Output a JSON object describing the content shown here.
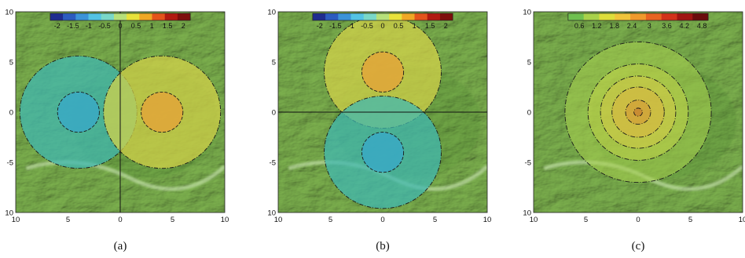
{
  "figure": {
    "panels": [
      {
        "id": "a",
        "caption": "(a)",
        "colorbar": {
          "kind": "diverging",
          "range": [
            -2,
            2
          ],
          "tick_labels": [
            "-2",
            "-1.5",
            "-1",
            "-0.5",
            "0",
            "0.5",
            "1",
            "1.5",
            "2"
          ],
          "colors": [
            "#1f2d8f",
            "#2c5cbf",
            "#3c93d8",
            "#53c3e4",
            "#79d8c8",
            "#b6e07a",
            "#e8e23a",
            "#f0a824",
            "#e4541b",
            "#b11a10",
            "#7d0e0c"
          ]
        },
        "y_tick_labels": [
          "10",
          "5",
          "0",
          "-5",
          "10"
        ],
        "x_tick_labels": [
          "10",
          "5",
          "0",
          "5",
          "10"
        ],
        "divider": "vertical",
        "regions": [
          {
            "name": "negative-region",
            "center": [
              -4,
              0
            ],
            "outer_radius": 5.6,
            "inner_radius": 2.0,
            "outer_color": "#3fb9b4",
            "inner_color": "#3aa9c4"
          },
          {
            "name": "positive-region",
            "center": [
              4,
              0
            ],
            "outer_radius": 5.6,
            "inner_radius": 2.0,
            "outer_color": "#d6d34a",
            "inner_color": "#e2a63a"
          }
        ]
      },
      {
        "id": "b",
        "caption": "(b)",
        "colorbar": {
          "kind": "diverging",
          "range": [
            -2,
            2
          ],
          "tick_labels": [
            "-2",
            "-1.5",
            "-1",
            "-0.5",
            "0",
            "0.5",
            "1",
            "1.5",
            "2"
          ],
          "colors": [
            "#1f2d8f",
            "#2c5cbf",
            "#3c93d8",
            "#53c3e4",
            "#79d8c8",
            "#b6e07a",
            "#e8e23a",
            "#f0a824",
            "#e4541b",
            "#b11a10",
            "#7d0e0c"
          ]
        },
        "y_tick_labels": [
          "10",
          "5",
          "0",
          "-5",
          "10"
        ],
        "x_tick_labels": [
          "10",
          "5",
          "0",
          "5",
          "10"
        ],
        "divider": "horizontal",
        "regions": [
          {
            "name": "positive-region",
            "center": [
              0,
              4
            ],
            "outer_radius": 5.6,
            "inner_radius": 2.0,
            "outer_color": "#d6d34a",
            "inner_color": "#e2a63a"
          },
          {
            "name": "negative-region",
            "center": [
              0,
              -4
            ],
            "outer_radius": 5.6,
            "inner_radius": 2.0,
            "outer_color": "#3fb9b4",
            "inner_color": "#3aa9c4"
          }
        ]
      },
      {
        "id": "c",
        "caption": "(c)",
        "colorbar": {
          "kind": "sequential",
          "range": [
            0,
            4.8
          ],
          "tick_labels": [
            "0.6",
            "1.2",
            "1.8",
            "2.4",
            "3",
            "3.6",
            "4.2",
            "4.8"
          ],
          "colors": [
            "#6fc04f",
            "#a8d24a",
            "#dede3a",
            "#f0c43a",
            "#f09a2c",
            "#e86422",
            "#d2321a",
            "#a01512",
            "#6a0c0c"
          ]
        },
        "y_tick_labels": [
          "10",
          "5",
          "0",
          "-5",
          "10"
        ],
        "x_tick_labels": [
          "10",
          "5",
          "0",
          "5",
          "10"
        ],
        "divider": "none",
        "contour_radii": [
          7.0,
          4.8,
          3.6,
          2.5,
          1.2,
          0.4
        ],
        "contour_colors": [
          "#a7d04e",
          "#c9d649",
          "#d9c948",
          "#ddb13f",
          "#d58f33",
          "#c16a2a"
        ]
      }
    ],
    "terrain_colors": {
      "base": "#7db24e",
      "dark": "#3e7a28",
      "light": "#d6eec0"
    }
  }
}
